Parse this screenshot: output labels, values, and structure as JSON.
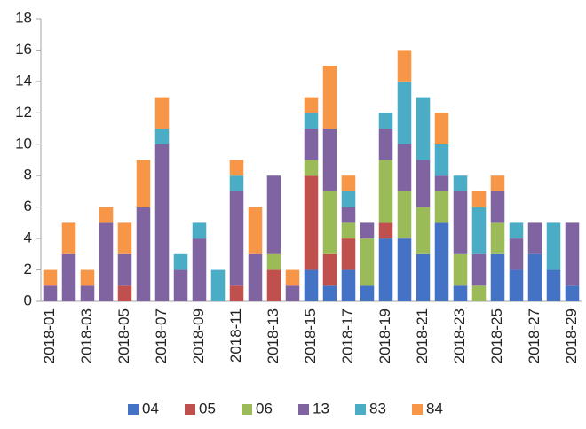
{
  "chart_data": {
    "type": "stacked_bar",
    "categories": [
      "2018-01",
      null,
      "2018-03",
      null,
      "2018-05",
      null,
      "2018-07",
      null,
      "2018-09",
      null,
      "2018-11",
      null,
      "2018-13",
      null,
      "2018-15",
      null,
      "2018-17",
      null,
      "2018-19",
      null,
      "2018-21",
      null,
      "2018-23",
      null,
      "2018-25",
      null,
      "2018-27",
      null,
      "2018-29"
    ],
    "series": [
      {
        "name": "04",
        "color": "#4472c4",
        "values": [
          0,
          0,
          0,
          0,
          0,
          0,
          0,
          0,
          0,
          0,
          0,
          0,
          0,
          0,
          2,
          1,
          2,
          1,
          4,
          4,
          3,
          5,
          1,
          0,
          3,
          2,
          3,
          2,
          1
        ]
      },
      {
        "name": "05",
        "color": "#c0504d",
        "values": [
          0,
          0,
          0,
          0,
          1,
          0,
          0,
          0,
          0,
          0,
          1,
          0,
          2,
          0,
          6,
          2,
          2,
          0,
          1,
          0,
          0,
          0,
          0,
          0,
          0,
          0,
          0,
          0,
          0
        ]
      },
      {
        "name": "06",
        "color": "#9bbb59",
        "values": [
          0,
          0,
          0,
          0,
          0,
          0,
          0,
          0,
          0,
          0,
          0,
          0,
          1,
          0,
          1,
          4,
          1,
          3,
          4,
          3,
          3,
          2,
          2,
          1,
          2,
          0,
          0,
          0,
          0
        ]
      },
      {
        "name": "13",
        "color": "#8064a2",
        "values": [
          1,
          3,
          1,
          5,
          2,
          6,
          10,
          2,
          4,
          0,
          6,
          3,
          5,
          1,
          2,
          4,
          1,
          1,
          2,
          3,
          3,
          1,
          4,
          2,
          2,
          2,
          2,
          0,
          4
        ]
      },
      {
        "name": "83",
        "color": "#4bacc6",
        "values": [
          0,
          0,
          0,
          0,
          0,
          0,
          1,
          1,
          1,
          2,
          1,
          0,
          0,
          0,
          1,
          0,
          1,
          0,
          1,
          4,
          4,
          2,
          1,
          3,
          0,
          1,
          0,
          3,
          0
        ]
      },
      {
        "name": "84",
        "color": "#f79646",
        "values": [
          1,
          2,
          1,
          1,
          2,
          3,
          2,
          0,
          0,
          0,
          1,
          3,
          0,
          1,
          1,
          4,
          1,
          0,
          0,
          2,
          0,
          2,
          0,
          1,
          1,
          0,
          0,
          0,
          0
        ]
      }
    ],
    "ylim": [
      0,
      18
    ],
    "yticks": [
      0,
      2,
      4,
      6,
      8,
      10,
      12,
      14,
      16,
      18
    ],
    "grid": false,
    "legend": "bottom"
  }
}
